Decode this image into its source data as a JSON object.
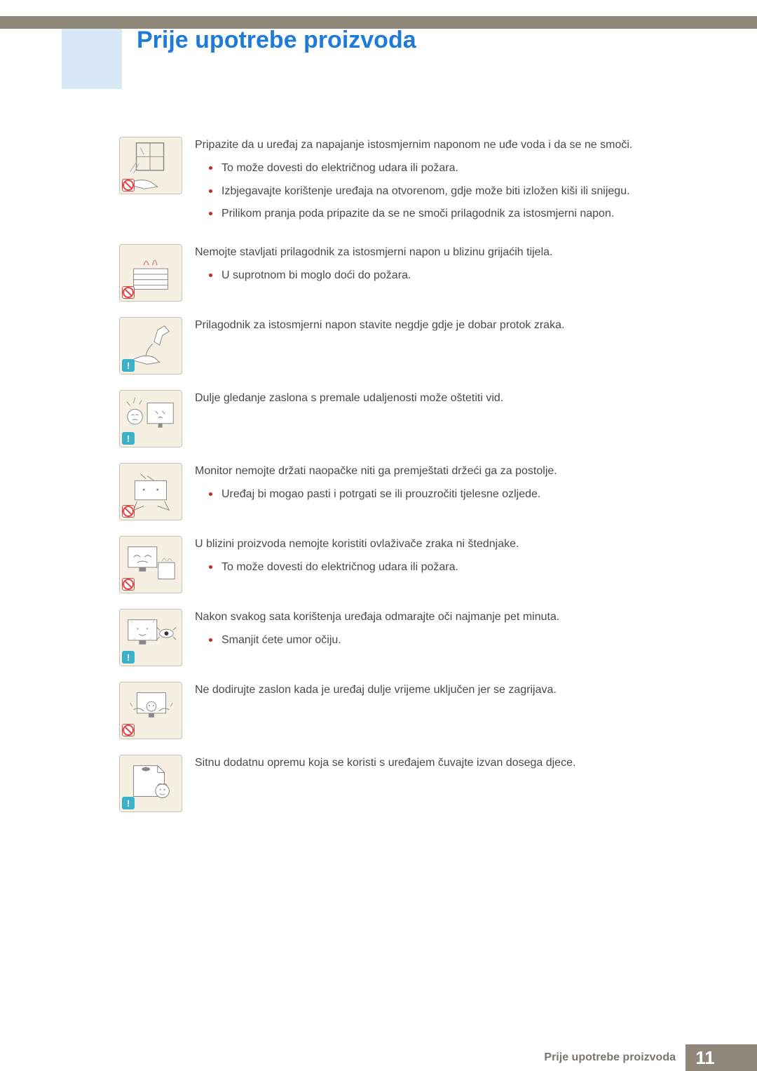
{
  "colors": {
    "header_bar": "#8f877a",
    "heading": "#1f7bd6",
    "side_square": "#d9e8f7",
    "icon_bg": "#f5f0e2",
    "icon_border": "#ccc5b6",
    "bullet": "#c1272d",
    "body_text": "#4a4a4a",
    "footer_text": "#7a766e",
    "info_badge": "#3bb0c9",
    "prohibit_badge": "#d44444"
  },
  "heading": "Prije upotrebe proizvoda",
  "footer": {
    "label": "Prije upotrebe proizvoda",
    "page": "11"
  },
  "sections": [
    {
      "badge": "prohibit",
      "lead": "Pripazite da u uređaj za napajanje istosmjernim naponom ne uđe voda i da se ne smoči.",
      "bullets": [
        "To može dovesti do električnog udara ili požara.",
        "Izbjegavajte korištenje uređaja na otvorenom, gdje može biti izložen kiši ili snijegu.",
        "Prilikom pranja poda pripazite da se ne smoči prilagodnik za istosmjerni napon."
      ]
    },
    {
      "badge": "prohibit",
      "lead": "Nemojte stavljati prilagodnik za istosmjerni napon u blizinu grijaćih tijela.",
      "bullets": [
        "U suprotnom bi moglo doći do požara."
      ]
    },
    {
      "badge": "info",
      "lead": "Prilagodnik za istosmjerni napon stavite negdje gdje je dobar protok zraka.",
      "bullets": []
    },
    {
      "badge": "info",
      "lead": "Dulje gledanje zaslona s premale udaljenosti može oštetiti vid.",
      "bullets": []
    },
    {
      "badge": "prohibit",
      "lead": "Monitor nemojte držati naopačke niti ga premještati držeći ga za postolje.",
      "bullets": [
        "Uređaj bi mogao pasti i potrgati se ili prouzročiti tjelesne ozljede."
      ]
    },
    {
      "badge": "prohibit",
      "lead": "U blizini proizvoda nemojte koristiti ovlaživače zraka ni štednjake.",
      "bullets": [
        "To može dovesti do električnog udara ili požara."
      ]
    },
    {
      "badge": "info",
      "lead": "Nakon svakog sata korištenja uređaja odmarajte oči najmanje pet minuta.",
      "bullets": [
        "Smanjit ćete umor očiju."
      ]
    },
    {
      "badge": "prohibit",
      "lead": "Ne dodirujte zaslon kada je uređaj dulje vrijeme uključen jer se zagrijava.",
      "bullets": []
    },
    {
      "badge": "info",
      "lead": "Sitnu dodatnu opremu koja se koristi s uređajem čuvajte izvan dosega djece.",
      "bullets": []
    }
  ],
  "icon_svgs": {
    "0": "<svg viewBox='0 0 90 82'><rect x='24' y='8' width='40' height='40' fill='none' stroke='#888' stroke-width='1.5'/><line x1='44' y1='8' x2='44' y2='48' stroke='#888'/><line x1='24' y1='28' x2='64' y2='28' stroke='#888'/><path d='M10 68 Q30 58 45 65 L55 72 L35 75 Z' fill='#fff' stroke='#888'/><path d='M15 50 L25 35 M20 52 L28 38 M30 15 L35 25' stroke='#aac' stroke-width='1'/></svg>",
    "1": "<svg viewBox='0 0 90 82'><rect x='20' y='35' width='50' height='30' fill='#fff' stroke='#888'/><line x1='20' y1='43' x2='70' y2='43' stroke='#888'/><line x1='20' y1='51' x2='70' y2='51' stroke='#888'/><line x1='20' y1='59' x2='70' y2='59' stroke='#888'/><path d='M35 30 Q38 18 42 30 M48 30 Q51 15 54 30' fill='none' stroke='#d88' stroke-width='1.5'/></svg>",
    "2": "<svg viewBox='0 0 90 82'><path d='M55 18 L65 12 L72 20 L62 26 L58 40 L50 35 Z' fill='#fff' stroke='#888'/><path d='M18 62 Q35 52 50 58 L58 65 L40 68 Z' fill='#fff' stroke='#888'/><path d='M48 38 Q40 45 38 55' fill='none' stroke='#888'/></svg>",
    "3": "<svg viewBox='0 0 90 82'><rect x='40' y='18' width='38' height='30' fill='#fff' stroke='#888'/><line x1='52' y1='30' x2='56' y2='34' stroke='#888'/><line x1='62' y1='30' x2='66' y2='34' stroke='#888'/><path d='M56 40 Q59 37 62 40' fill='none' stroke='#888'/><rect x='56' y='48' width='6' height='6' fill='#888'/><circle cx='22' cy='38' r='11' fill='#fff' stroke='#888'/><path d='M17 36 Q19 34 21 36 M23 36 Q25 34 27 36' fill='none' stroke='#888'/><path d='M18 43 Q22 41 26 43' fill='none' stroke='#888'/><path d='M20 18 L22 10 M15 22 L10 16 M28 20 L32 14' stroke='#8a6' stroke-width='1'/></svg>",
    "4": "<svg viewBox='0 0 90 82'><rect x='22' y='25' width='46' height='28' fill='#fff' stroke='#888'/><circle cx='35' cy='38' r='1.5' fill='#888'/><circle cx='55' cy='38' r='1.5' fill='#888'/><path d='M40 18 L50 25 M38 22 L30 15' stroke='#888' fill='none'/><path d='M25 55 L20 68 L35 62 M65 55 L72 68 L55 62' fill='none' stroke='#888'/></svg>",
    "5": "<svg viewBox='0 0 90 82'><rect x='12' y='15' width='42' height='30' fill='#fff' stroke='#888'/><rect x='28' y='45' width='10' height='6' fill='#888'/><path d='M20 30 Q25 25 30 30 M36 30 Q41 25 46 30' fill='none' stroke='#888'/><path d='M25 38 Q33 34 41 38' fill='none' stroke='#888'/><rect x='56' y='38' width='24' height='24' fill='#fff' stroke='#888'/><path d='M62 36 Q64 28 68 36 M70 36 Q72 28 76 36' fill='none' stroke='#bbb'/></svg>",
    "6": "<svg viewBox='0 0 90 82'><rect x='12' y='15' width='42' height='30' fill='#fff' stroke='#888'/><circle cx='26' cy='28' r='1' fill='#888'/><circle cx='40' cy='28' r='1' fill='#888'/><path d='M28 36 Q33 40 38 36' fill='none' stroke='#888'/><rect x='28' y='45' width='10' height='6' fill='#888'/><path d='M18 20 L16 16 M48 20 L50 16 M22 42 L20 46 M44 42 L46 46' stroke='#cc8'/><ellipse cx='68' cy='35' rx='10' ry='6' fill='#fff' stroke='#888'/><circle cx='68' cy='35' r='3' fill='#333'/><path d='M58 30 L54 26 M78 30 L82 26 M58 40 L54 44 M78 40 L82 44' stroke='#888'/></svg>",
    "7": "<svg viewBox='0 0 90 82'><rect x='25' y='15' width='42' height='30' fill='#fff' stroke='#888'/><rect x='42' y='45' width='8' height='6' fill='#888'/><circle cx='46' cy='35' r='7' fill='#fff' stroke='#888'/><circle cx='43' cy='34' r='1' fill='#888'/><circle cx='49' cy='34' r='1' fill='#888'/><path d='M20 40 Q28 35 35 42 M72 40 Q64 35 57 42' fill='none' stroke='#888'/><path d='M18 35 L15 30 M74 35 L77 30' stroke='#d88'/></svg>",
    "8": "<svg viewBox='0 0 90 82'><path d='M20 15 L55 15 L65 25 L65 60 L20 60 Z' fill='#fff' stroke='#888'/><line x1='55' y1='15' x2='55' y2='25' stroke='#888'/><line x1='55' y1='25' x2='65' y2='25' stroke='#888'/><ellipse cx='38' cy='20' rx='6' ry='3' fill='#888'/><circle cx='62' cy='52' r='10' fill='#fff' stroke='#888'/><circle cx='59' cy='50' r='1' fill='#888'/><circle cx='65' cy='50' r='1' fill='#888'/><path d='M58 56 Q62 59 66 56' fill='none' stroke='#888'/><path d='M55 44 Q58 40 62 42 M69 44 Q66 40 62 42' fill='none' stroke='#888'/></svg>"
  }
}
